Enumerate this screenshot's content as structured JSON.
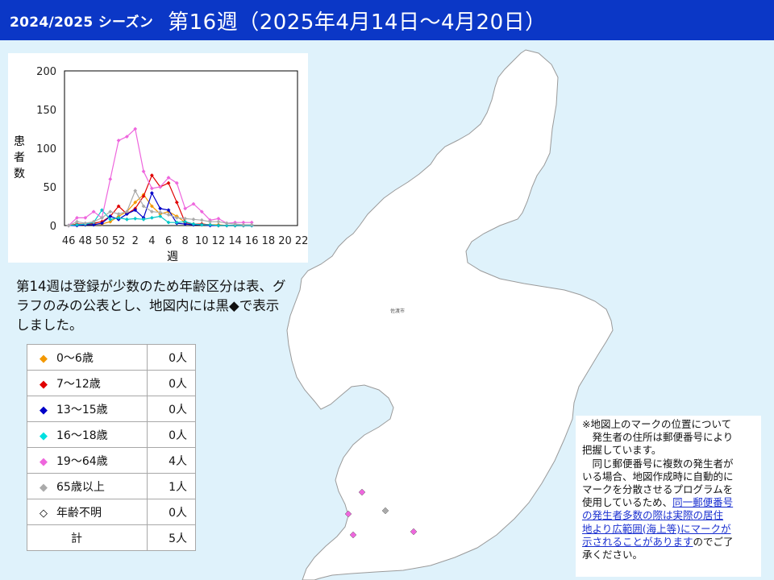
{
  "header": {
    "season": "2024/2025 シーズン",
    "week": "第16週（2025年4月14日～4月20日）"
  },
  "chart_data": {
    "type": "line",
    "y_axis_label": "患者数",
    "y_axis_label_chars": [
      "患",
      "者",
      "数"
    ],
    "x_axis_label": "週",
    "ylim": [
      0,
      200
    ],
    "y_ticks": [
      0,
      50,
      100,
      150,
      200
    ],
    "x_tick_labels": [
      "46",
      "48",
      "50",
      "52",
      "2",
      "4",
      "6",
      "8",
      "10",
      "12",
      "14",
      "16",
      "18",
      "20",
      "22"
    ],
    "weeks": [
      "46",
      "47",
      "48",
      "49",
      "50",
      "51",
      "52",
      "1",
      "2",
      "3",
      "4",
      "5",
      "6",
      "7",
      "8",
      "9",
      "10",
      "11",
      "12",
      "13",
      "14",
      "15",
      "16"
    ],
    "series": [
      {
        "color": "#f39800",
        "values": [
          0,
          2,
          1,
          2,
          2,
          5,
          12,
          18,
          30,
          40,
          25,
          15,
          18,
          12,
          4,
          2,
          2,
          1,
          1,
          0,
          0,
          0,
          0
        ]
      },
      {
        "color": "#e00000",
        "values": [
          0,
          2,
          2,
          3,
          5,
          12,
          25,
          15,
          22,
          38,
          65,
          50,
          55,
          30,
          4,
          2,
          2,
          1,
          0,
          0,
          0,
          0,
          0
        ]
      },
      {
        "color": "#0000c8",
        "values": [
          0,
          0,
          1,
          1,
          3,
          12,
          8,
          15,
          20,
          10,
          42,
          22,
          20,
          3,
          2,
          1,
          1,
          0,
          0,
          0,
          0,
          0,
          0
        ]
      },
      {
        "color": "#00c8c8",
        "values": [
          0,
          1,
          2,
          4,
          20,
          8,
          10,
          8,
          9,
          8,
          10,
          12,
          4,
          4,
          5,
          2,
          1,
          1,
          0,
          0,
          0,
          0,
          0
        ]
      },
      {
        "color": "#ee66dd",
        "values": [
          0,
          10,
          10,
          18,
          10,
          60,
          110,
          115,
          125,
          70,
          48,
          50,
          62,
          55,
          22,
          28,
          18,
          7,
          9,
          3,
          4,
          4,
          4
        ]
      },
      {
        "color": "#aaaaaa",
        "values": [
          0,
          5,
          3,
          5,
          10,
          18,
          15,
          18,
          45,
          25,
          18,
          17,
          14,
          10,
          9,
          8,
          7,
          5,
          5,
          3,
          2,
          1,
          1
        ]
      }
    ]
  },
  "note": {
    "text": "第14週は登録が少数のため年齢区分は表、グラフのみの公表とし、地図内には黒◆で表示しました。"
  },
  "legend": {
    "rows": [
      {
        "label": "0～6歳",
        "count": "0人",
        "color": "#f39800",
        "marker": "◆"
      },
      {
        "label": "7～12歳",
        "count": "0人",
        "color": "#e00000",
        "marker": "◆"
      },
      {
        "label": "13～15歳",
        "count": "0人",
        "color": "#0000c8",
        "marker": "◆"
      },
      {
        "label": "16～18歳",
        "count": "0人",
        "color": "#00e0e0",
        "marker": "◆"
      },
      {
        "label": "19～64歳",
        "count": "4人",
        "color": "#ee66dd",
        "marker": "◆"
      },
      {
        "label": "65歳以上",
        "count": "1人",
        "color": "#aaaaaa",
        "marker": "◆"
      },
      {
        "label": "年齢不明",
        "count": "0人",
        "color": "#000000",
        "marker": "◇"
      }
    ],
    "total_label": "計",
    "total_count": "5人"
  },
  "map": {
    "city_label": "佐渡市",
    "island_fill": "#ffffff",
    "sea_color": "#dff2fb",
    "markers": [
      {
        "color": "#ee66dd"
      },
      {
        "color": "#ee66dd"
      },
      {
        "color": "#ee66dd"
      },
      {
        "color": "#ee66dd"
      },
      {
        "color": "#aaaaaa"
      }
    ]
  },
  "info": {
    "line1": "※地図上のマークの位置について",
    "line2": "　発生者の住所は郵便番号により",
    "line3": "把握しています。",
    "line4": "　同じ郵便番号に複数の発生者が",
    "line5": "いる場合、地図作成時に自動的に",
    "line6": "マークを分散させるプログラムを",
    "line7_pre": "使用しているため、",
    "link1": "同一郵便番号",
    "link2": "の発生者多数の際は実際の居住",
    "link3": "地より広範囲(海上等)にマークが",
    "link4": "示されることがあります",
    "line11_post": "のでご了",
    "line12": "承ください。"
  }
}
